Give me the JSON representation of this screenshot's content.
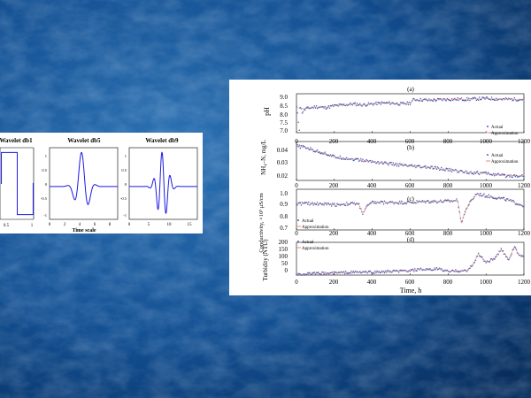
{
  "colors": {
    "bg_light": "#2e73b4",
    "bg_mid": "#135093",
    "bg_dark": "#072e5e",
    "wavelet_line": "#1a1ae6",
    "actual": "#4a5fb8",
    "approximation": "#e8897a",
    "axis": "#000000"
  },
  "chart_data": [
    {
      "type": "line",
      "title": "Wavelet db1",
      "xlabel": "",
      "x_ticks": [
        "0.5",
        "1"
      ],
      "xlim": [
        0,
        1
      ],
      "ylim": [
        -1.5,
        1.5
      ],
      "series": [
        {
          "x": [
            0,
            0.015,
            0.015,
            0.5,
            0.5,
            0.985,
            0.985,
            1
          ],
          "y": [
            0,
            0,
            1.3,
            1.3,
            -1.3,
            -1.3,
            0,
            0
          ]
        }
      ]
    },
    {
      "type": "line",
      "title": "Wavelet db5",
      "xlabel": "Time scale",
      "x_ticks": [
        "0",
        "2",
        "4",
        "6",
        "8"
      ],
      "y_ticks": [
        "1",
        "0.5",
        "0",
        "-0.5",
        "-1"
      ],
      "xlim": [
        0,
        9
      ],
      "ylim": [
        -1.1,
        1.3
      ],
      "series": [
        {
          "generator": "db5"
        }
      ]
    },
    {
      "type": "line",
      "title": "Wavelet db9",
      "xlabel": "",
      "x_ticks": [
        "0",
        "5",
        "10",
        "15"
      ],
      "y_ticks": [
        "1",
        "0.5",
        "0",
        "-0.5",
        "-1"
      ],
      "xlim": [
        0,
        17
      ],
      "ylim": [
        -1.1,
        1.3
      ],
      "series": [
        {
          "generator": "db9"
        }
      ]
    },
    {
      "type": "scatter",
      "panel": "(a)",
      "ylabel": "pH",
      "y_ticks": [
        "9.0",
        "8.5",
        "8.0",
        "7.5",
        "7.0"
      ],
      "ylim": [
        7.0,
        9.1
      ],
      "xlim": [
        0,
        1200
      ],
      "legend": [
        "Actual",
        "Approximation"
      ],
      "legend_position": "bottom-right",
      "series": [
        {
          "name": "Actual",
          "x": [
            0,
            15,
            20,
            30,
            50,
            80,
            100,
            150,
            200,
            250,
            300,
            350,
            400,
            450,
            500,
            550,
            600,
            620,
            700,
            800,
            900,
            1000,
            1100,
            1200
          ],
          "y": [
            8.4,
            7.2,
            8.4,
            8.1,
            8.3,
            8.35,
            8.4,
            8.35,
            8.45,
            8.5,
            8.55,
            8.5,
            8.55,
            8.6,
            8.6,
            8.55,
            8.6,
            8.8,
            8.75,
            8.8,
            8.8,
            8.85,
            8.8,
            8.8
          ]
        },
        {
          "name": "Approximation",
          "x": [
            0,
            20,
            50,
            100,
            150,
            200,
            250,
            300,
            350,
            400,
            450,
            500,
            550,
            600,
            620,
            700,
            800,
            900,
            1000,
            1100,
            1200
          ],
          "y": [
            8.4,
            8.3,
            8.3,
            8.38,
            8.36,
            8.44,
            8.48,
            8.53,
            8.5,
            8.55,
            8.58,
            8.58,
            8.55,
            8.6,
            8.78,
            8.76,
            8.8,
            8.8,
            8.84,
            8.8,
            8.8
          ]
        }
      ]
    },
    {
      "type": "scatter",
      "panel": "(b)",
      "ylabel": "NH₄–N, mg/L",
      "y_ticks": [
        "0.04",
        "0.03",
        "0.02"
      ],
      "ylim": [
        0.015,
        0.048
      ],
      "xlim": [
        0,
        1200
      ],
      "legend": [
        "Actual",
        "Approximation"
      ],
      "legend_position": "top-right",
      "series": [
        {
          "name": "Actual",
          "x": [
            0,
            50,
            100,
            150,
            200,
            300,
            400,
            500,
            600,
            700,
            800,
            900,
            1000,
            1100,
            1200
          ],
          "y": [
            0.044,
            0.043,
            0.04,
            0.038,
            0.035,
            0.033,
            0.031,
            0.029,
            0.027,
            0.026,
            0.024,
            0.022,
            0.021,
            0.019,
            0.019
          ]
        },
        {
          "name": "Approximation",
          "x": [
            0,
            50,
            100,
            150,
            200,
            300,
            400,
            500,
            600,
            700,
            800,
            900,
            1000,
            1100,
            1200
          ],
          "y": [
            0.044,
            0.043,
            0.04,
            0.038,
            0.035,
            0.033,
            0.031,
            0.029,
            0.027,
            0.026,
            0.024,
            0.022,
            0.021,
            0.019,
            0.019
          ]
        }
      ]
    },
    {
      "type": "scatter",
      "panel": "(c)",
      "ylabel": "Conductivity, ×10³ μS/cm",
      "y_ticks": [
        "1.0",
        "0.9",
        "0.8",
        "0.7"
      ],
      "ylim": [
        0.67,
        1.04
      ],
      "xlim": [
        0,
        1200
      ],
      "legend": [
        "Actual",
        "Approximation"
      ],
      "legend_position": "bottom-left",
      "series": [
        {
          "name": "Actual",
          "x": [
            0,
            100,
            200,
            300,
            330,
            350,
            370,
            400,
            500,
            600,
            700,
            800,
            850,
            870,
            900,
            950,
            1000,
            1100,
            1200
          ],
          "y": [
            0.91,
            0.91,
            0.9,
            0.91,
            0.9,
            0.82,
            0.88,
            0.92,
            0.92,
            0.92,
            0.93,
            0.93,
            0.94,
            0.74,
            0.88,
            1.0,
            0.98,
            0.95,
            0.89
          ]
        },
        {
          "name": "Approximation",
          "x": [
            0,
            100,
            200,
            300,
            330,
            350,
            370,
            400,
            500,
            600,
            700,
            800,
            850,
            870,
            900,
            950,
            1000,
            1100,
            1200
          ],
          "y": [
            0.91,
            0.91,
            0.9,
            0.91,
            0.9,
            0.82,
            0.88,
            0.92,
            0.92,
            0.92,
            0.93,
            0.93,
            0.94,
            0.74,
            0.88,
            1.0,
            0.98,
            0.95,
            0.89
          ]
        }
      ]
    },
    {
      "type": "scatter",
      "panel": "(d)",
      "ylabel": "Turbidity (NTU)",
      "xlabel": "Time, h",
      "x_ticks": [
        "0",
        "200",
        "400",
        "600",
        "800",
        "1000",
        "1200"
      ],
      "y_ticks": [
        "200",
        "150",
        "100",
        "50",
        "0"
      ],
      "ylim": [
        0,
        230
      ],
      "xlim": [
        0,
        1200
      ],
      "legend": [
        "Actual",
        "Approximation"
      ],
      "legend_position": "top-left",
      "series": [
        {
          "name": "Actual",
          "x": [
            0,
            100,
            200,
            300,
            400,
            500,
            600,
            650,
            700,
            750,
            800,
            850,
            900,
            930,
            960,
            1000,
            1050,
            1080,
            1120,
            1150,
            1170,
            1200
          ],
          "y": [
            5,
            10,
            15,
            20,
            20,
            25,
            30,
            40,
            35,
            45,
            25,
            30,
            30,
            70,
            150,
            90,
            120,
            180,
            110,
            200,
            150,
            120
          ]
        },
        {
          "name": "Approximation",
          "x": [
            0,
            100,
            200,
            300,
            400,
            500,
            600,
            650,
            700,
            750,
            800,
            850,
            900,
            930,
            960,
            1000,
            1050,
            1080,
            1120,
            1150,
            1170,
            1200
          ],
          "y": [
            5,
            10,
            15,
            20,
            20,
            25,
            30,
            40,
            35,
            45,
            25,
            30,
            30,
            70,
            150,
            90,
            120,
            180,
            110,
            200,
            150,
            120
          ]
        }
      ]
    }
  ]
}
